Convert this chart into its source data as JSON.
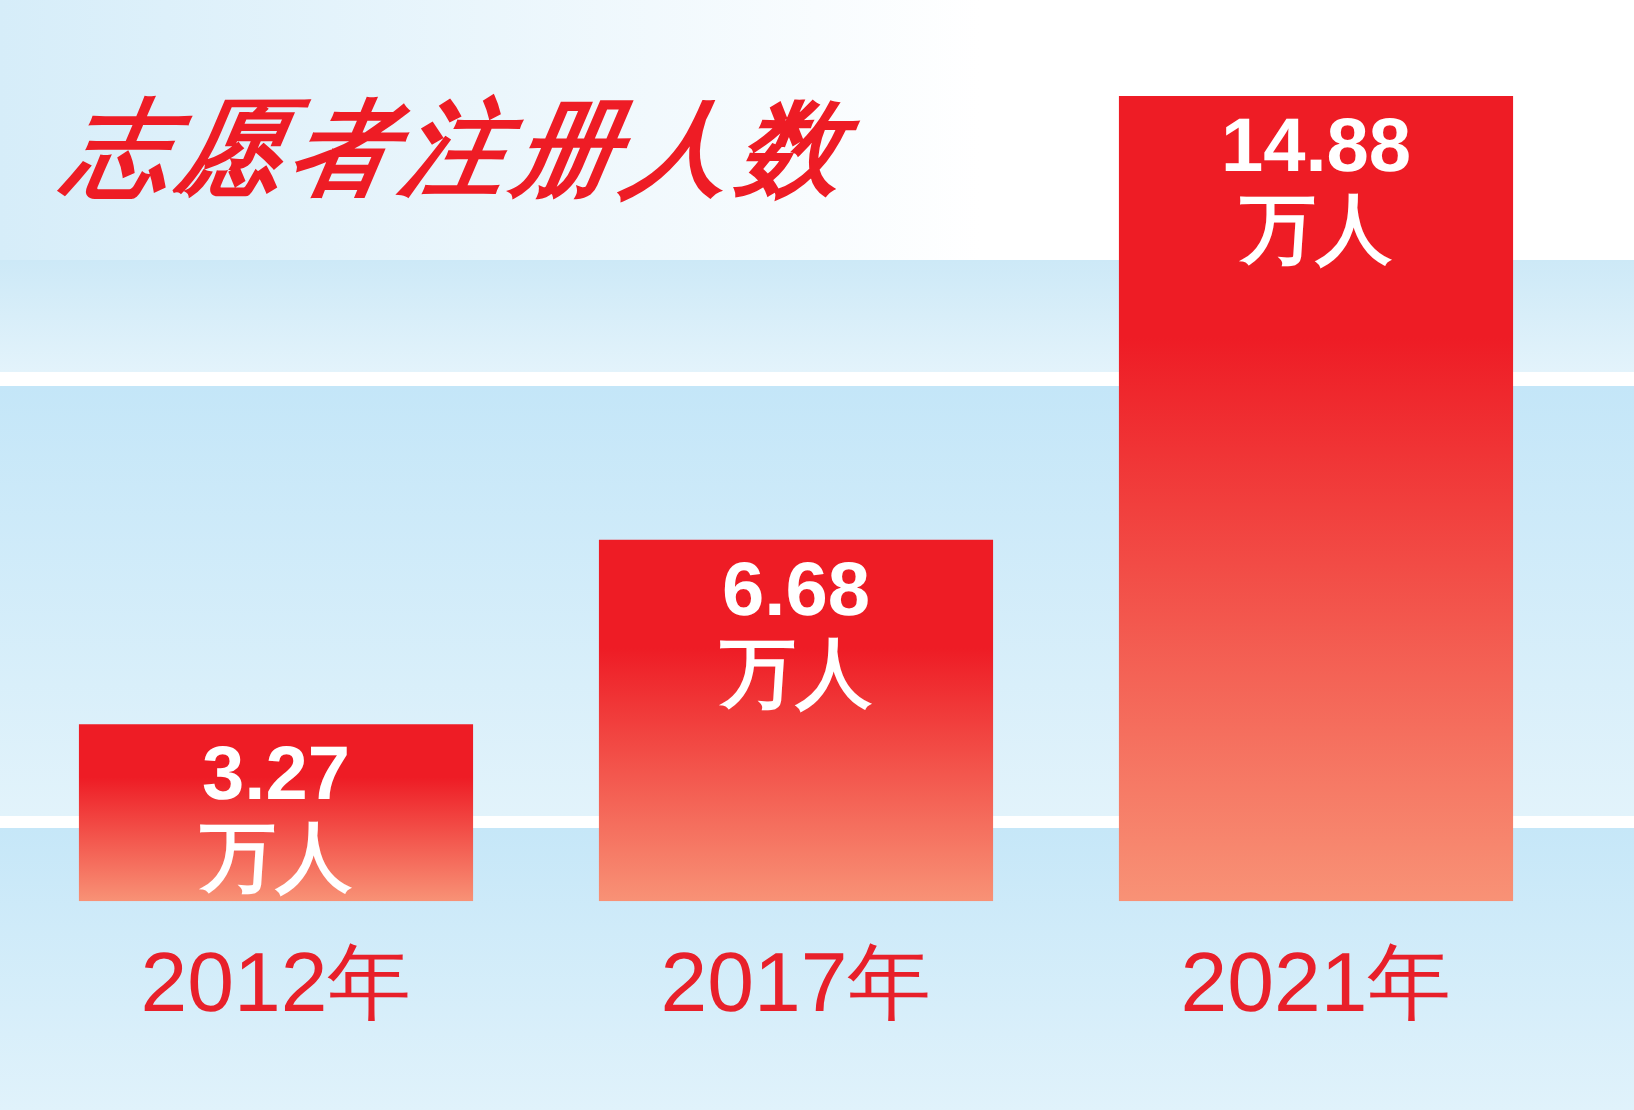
{
  "chart_data": {
    "type": "bar",
    "title": "志愿者注册人数",
    "categories": [
      "2012年",
      "2017年",
      "2021年"
    ],
    "values": [
      3.27,
      6.68,
      14.88
    ],
    "value_labels": [
      "3.27 万人",
      "6.68 万人",
      "14.88 万人"
    ],
    "color": "#ee1c25"
  }
}
